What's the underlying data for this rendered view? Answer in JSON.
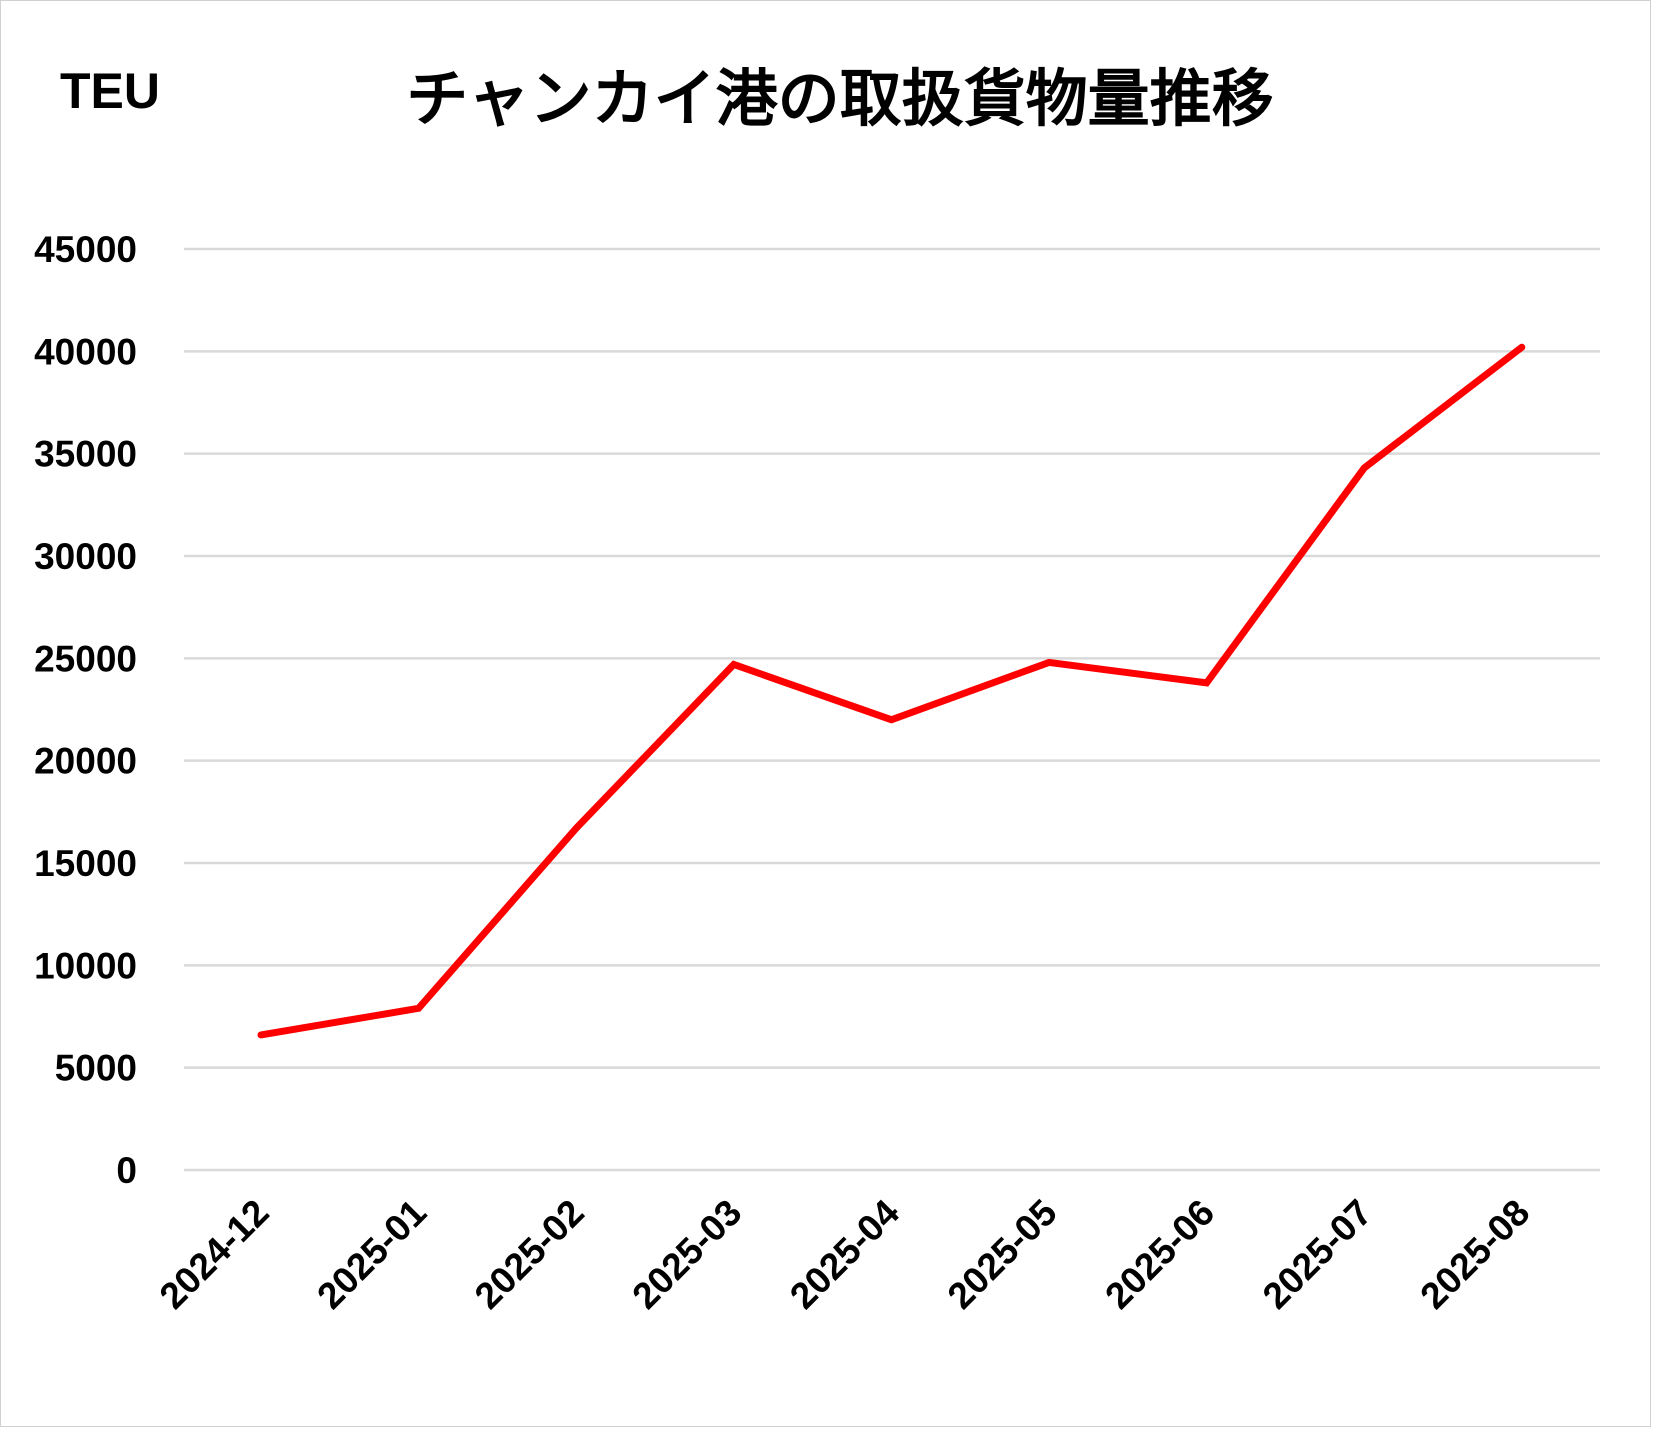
{
  "chart_data": {
    "type": "line",
    "title": "チャンカイ港の取扱貨物量推移",
    "ylabel": "TEU",
    "xlabel": "",
    "categories": [
      "2024-12",
      "2025-01",
      "2025-02",
      "2025-03",
      "2025-04",
      "2025-05",
      "2025-06",
      "2025-07",
      "2025-08"
    ],
    "series": [
      {
        "name": "TEU",
        "color": "#ff0000",
        "values": [
          6600,
          7900,
          16700,
          24700,
          22000,
          24800,
          23800,
          34300,
          40200
        ]
      }
    ],
    "ylim": [
      0,
      45000
    ],
    "yticks": [
      "0",
      "5000",
      "10000",
      "15000",
      "20000",
      "25000",
      "30000",
      "35000",
      "40000",
      "45000"
    ],
    "grid": true,
    "legend": "none"
  }
}
